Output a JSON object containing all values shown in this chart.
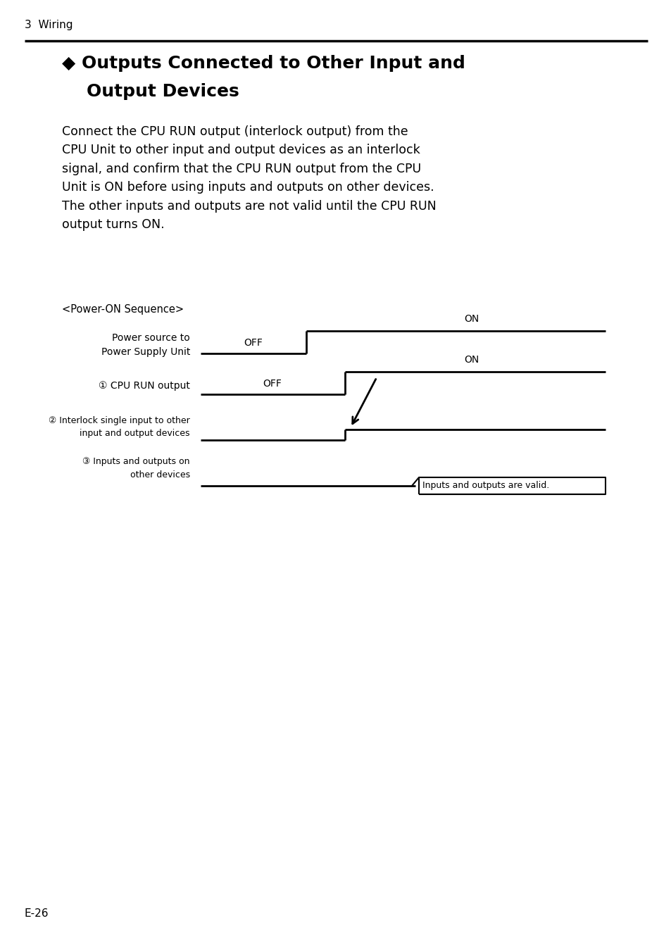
{
  "page_header": "3  Wiring",
  "title_bullet": "◆ Outputs Connected to Other Input and",
  "title_line2": "    Output Devices",
  "body_text": "Connect the CPU RUN output (interlock output) from the\nCPU Unit to other input and output devices as an interlock\nsignal, and confirm that the CPU RUN output from the CPU\nUnit is ON before using inputs and outputs on other devices.\nThe other inputs and outputs are not valid until the CPU RUN\noutput turns ON.",
  "sequence_label": "<Power-ON Sequence>",
  "label1_line1": "Power source to",
  "label1_line2": "Power Supply Unit",
  "label2": "① CPU RUN output",
  "label3_line1": "② Interlock single input to other",
  "label3_line2": "input and output devices",
  "label4_line1": "③ Inputs and outputs on",
  "label4_line2": "other devices",
  "off_label": "OFF",
  "on_label": "ON",
  "valid_label": "Inputs and outputs are valid.",
  "page_number": "E-26",
  "bg_color": "#ffffff",
  "text_color": "#000000"
}
